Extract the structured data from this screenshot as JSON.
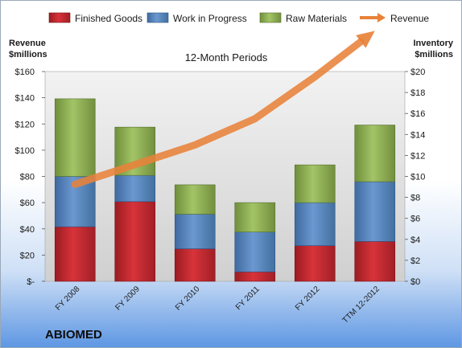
{
  "chart_data": {
    "type": "bar",
    "subtype": "stacked-bar-with-line",
    "title": "12-Month Periods",
    "company": "ABIOMED",
    "categories": [
      "FY 2008",
      "FY 2009",
      "FY 2010",
      "FY 2011",
      "FY 2012",
      "TTM 12-2012"
    ],
    "series": [
      {
        "name": "Finished Goods",
        "axis": "right",
        "color": "#c0262d",
        "values": [
          5.2,
          7.6,
          3.1,
          0.9,
          3.4,
          3.8
        ]
      },
      {
        "name": "Work in Progress",
        "axis": "right",
        "color": "#4f81bd",
        "values": [
          4.8,
          2.5,
          3.3,
          3.8,
          4.1,
          5.7
        ]
      },
      {
        "name": "Raw Materials",
        "axis": "right",
        "color": "#8db051",
        "values": [
          7.4,
          4.6,
          2.8,
          2.8,
          3.6,
          5.4
        ]
      },
      {
        "name": "Revenue",
        "axis": "left",
        "type": "line",
        "color": "#e8823a",
        "values": [
          74,
          89,
          104,
          124,
          156,
          191
        ]
      }
    ],
    "ylabel_left": "Revenue $millions",
    "ylabel_right": "Inventory $millions",
    "ylim_left": [
      0,
      160
    ],
    "ylim_right": [
      0,
      20
    ],
    "yticks_left": [
      "$-",
      "$20",
      "$40",
      "$60",
      "$80",
      "$100",
      "$120",
      "$140",
      "$160"
    ],
    "yticks_right": [
      "$0",
      "$2",
      "$4",
      "$6",
      "$8",
      "$10",
      "$12",
      "$14",
      "$16",
      "$18",
      "$20"
    ],
    "grid": false,
    "legend_position": "top"
  }
}
